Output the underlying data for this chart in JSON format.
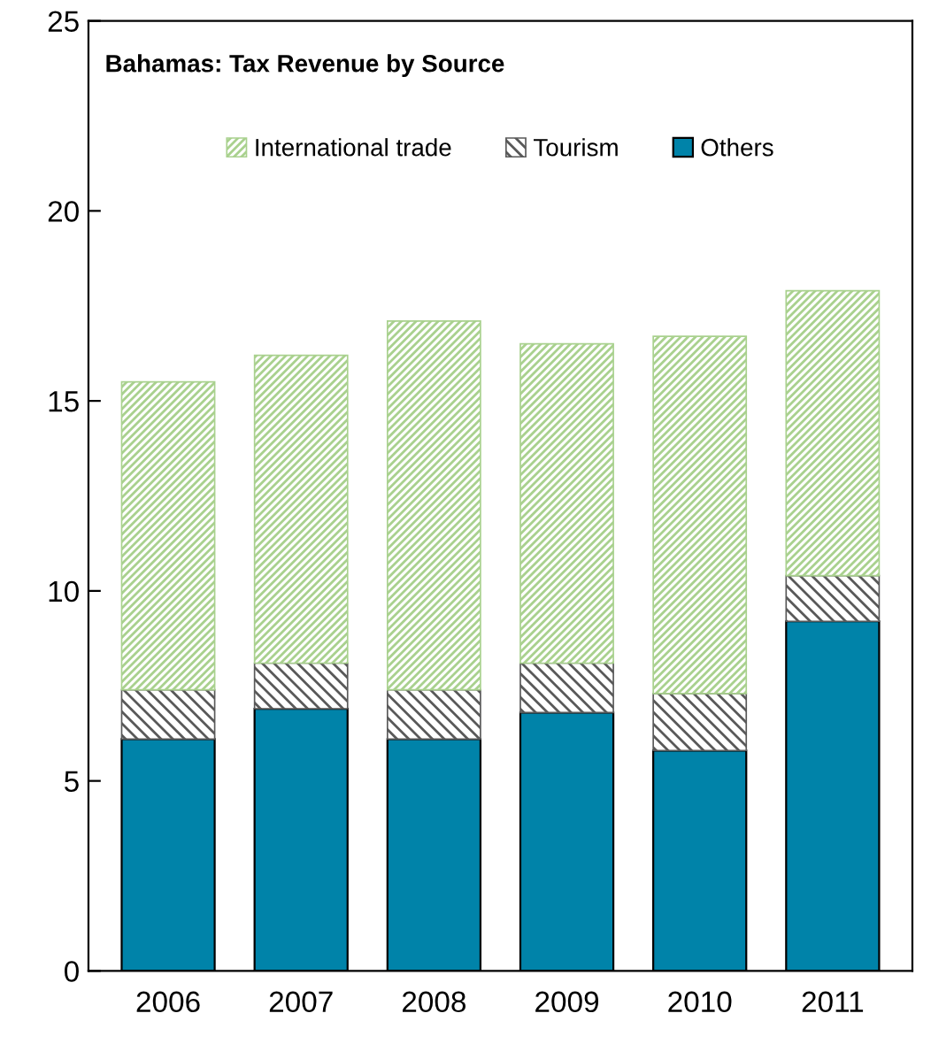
{
  "chart_data": {
    "type": "bar",
    "title": "Bahamas: Tax Revenue by Source",
    "stacked": true,
    "categories": [
      "2006",
      "2007",
      "2008",
      "2009",
      "2010",
      "2011"
    ],
    "series": [
      {
        "name": "Others",
        "color": "#0083a9",
        "values": [
          6.1,
          6.9,
          6.1,
          6.8,
          5.8,
          9.2
        ]
      },
      {
        "name": "Tourism",
        "color": "#595959",
        "values": [
          1.3,
          1.2,
          1.3,
          1.3,
          1.5,
          1.2
        ]
      },
      {
        "name": "International trade",
        "color": "#a9d18e",
        "values": [
          8.1,
          8.1,
          9.7,
          8.4,
          9.4,
          7.5
        ]
      }
    ],
    "ylim": [
      0,
      25
    ],
    "yticks": [
      0,
      5,
      10,
      15,
      20,
      25
    ],
    "grid": false,
    "legend": "top"
  }
}
